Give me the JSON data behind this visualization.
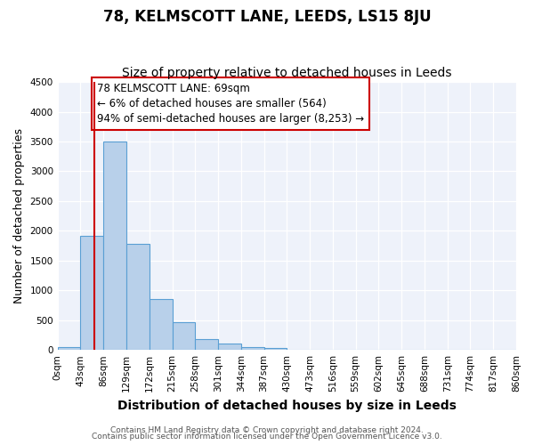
{
  "title": "78, KELMSCOTT LANE, LEEDS, LS15 8JU",
  "subtitle": "Size of property relative to detached houses in Leeds",
  "xlabel": "Distribution of detached houses by size in Leeds",
  "ylabel": "Number of detached properties",
  "bar_values": [
    50,
    1920,
    3500,
    1775,
    860,
    460,
    175,
    100,
    55,
    35,
    0,
    0,
    0,
    0,
    0,
    0,
    0,
    0,
    0,
    0
  ],
  "bin_labels": [
    "0sqm",
    "43sqm",
    "86sqm",
    "129sqm",
    "172sqm",
    "215sqm",
    "258sqm",
    "301sqm",
    "344sqm",
    "387sqm",
    "430sqm",
    "473sqm",
    "516sqm",
    "559sqm",
    "602sqm",
    "645sqm",
    "688sqm",
    "731sqm",
    "774sqm",
    "817sqm",
    "860sqm"
  ],
  "bar_color": "#b8d0ea",
  "bar_edge_color": "#5a9fd4",
  "bar_alpha": 1.0,
  "annotation_line1": "78 KELMSCOTT LANE: 69sqm",
  "annotation_line2": "← 6% of detached houses are smaller (564)",
  "annotation_line3": "94% of semi-detached houses are larger (8,253) →",
  "redline_color": "#cc0000",
  "ylim": [
    0,
    4500
  ],
  "yticks": [
    0,
    500,
    1000,
    1500,
    2000,
    2500,
    3000,
    3500,
    4000,
    4500
  ],
  "bg_color": "#eef2fa",
  "grid_color": "white",
  "footer_line1": "Contains HM Land Registry data © Crown copyright and database right 2024.",
  "footer_line2": "Contains public sector information licensed under the Open Government Licence v3.0.",
  "title_fontsize": 12,
  "subtitle_fontsize": 10,
  "xlabel_fontsize": 10,
  "ylabel_fontsize": 9,
  "tick_fontsize": 7.5,
  "annotation_fontsize": 8.5,
  "footer_fontsize": 6.5
}
